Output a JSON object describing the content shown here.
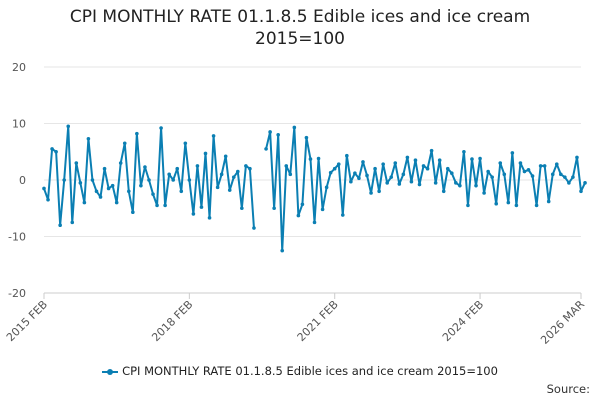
{
  "chart_data": {
    "type": "line",
    "title_line1": "CPI MONTHLY RATE 01.1.8.5 Edible ices and ice cream",
    "title_line2": "2015=100",
    "series": [
      {
        "name": "CPI MONTHLY RATE 01.1.8.5 Edible ices and ice cream 2015=100",
        "color": "#0b7fb3",
        "start": "2015-02",
        "values": [
          -1.5,
          -3.5,
          5.5,
          5.0,
          -8.0,
          0.0,
          9.5,
          -7.5,
          3.0,
          -0.5,
          -4.0,
          7.3,
          0.0,
          -2.0,
          -3.0,
          2.0,
          -1.5,
          -1.0,
          -4.0,
          3.0,
          6.5,
          -2.0,
          -5.7,
          8.2,
          -1.0,
          2.3,
          0.0,
          -2.5,
          -4.5,
          9.2,
          -4.5,
          1.0,
          0.0,
          2.0,
          -2.0,
          6.5,
          0.0,
          -6.0,
          2.5,
          -4.8,
          4.7,
          -6.7,
          7.8,
          -1.3,
          1.0,
          4.2,
          -1.8,
          0.5,
          1.5,
          -5.0,
          2.5,
          2.0,
          -8.5,
          null,
          null,
          5.5,
          8.5,
          -5.0,
          8.0,
          -12.5,
          2.5,
          1.0,
          9.3,
          -6.3,
          -4.3,
          7.5,
          3.7,
          -7.5,
          3.8,
          -5.2,
          -1.3,
          1.3,
          2.0,
          2.8,
          -6.2,
          4.3,
          -0.3,
          1.2,
          0.3,
          3.2,
          0.8,
          -2.3,
          2.0,
          -2.0,
          2.8,
          -0.5,
          0.5,
          3.0,
          -0.7,
          1.0,
          4.0,
          -0.3,
          3.5,
          -0.8,
          2.5,
          2.0,
          5.2,
          -0.5,
          3.5,
          -2.0,
          2.0,
          1.2,
          -0.5,
          -1.0,
          5.0,
          -4.5,
          3.7,
          -1.0,
          3.8,
          -2.3,
          1.5,
          0.5,
          -4.2,
          3.0,
          1.0,
          -4.0,
          4.8,
          -4.5,
          3.0,
          1.5,
          1.8,
          0.7,
          -4.5,
          2.5,
          2.5,
          -3.8,
          1.0,
          2.8,
          1.0,
          0.5,
          -0.5,
          0.5,
          4.0,
          -2.0,
          -0.5
        ]
      }
    ],
    "yticks": [
      -20,
      -10,
      0,
      10,
      20
    ],
    "ylim": [
      -20,
      20
    ],
    "xticks": [
      "2015 FEB",
      "2018 FEB",
      "2021 FEB",
      "2024 FEB",
      "2026 MAR"
    ],
    "xtick_dates": [
      "2015-02",
      "2018-02",
      "2021-02",
      "2024-02",
      "2026-03"
    ],
    "x_range": [
      "2015-02",
      "2026-03"
    ],
    "xlabel": "",
    "ylabel": "",
    "grid": true,
    "legend_position": "bottom"
  },
  "source_label": "Source:"
}
